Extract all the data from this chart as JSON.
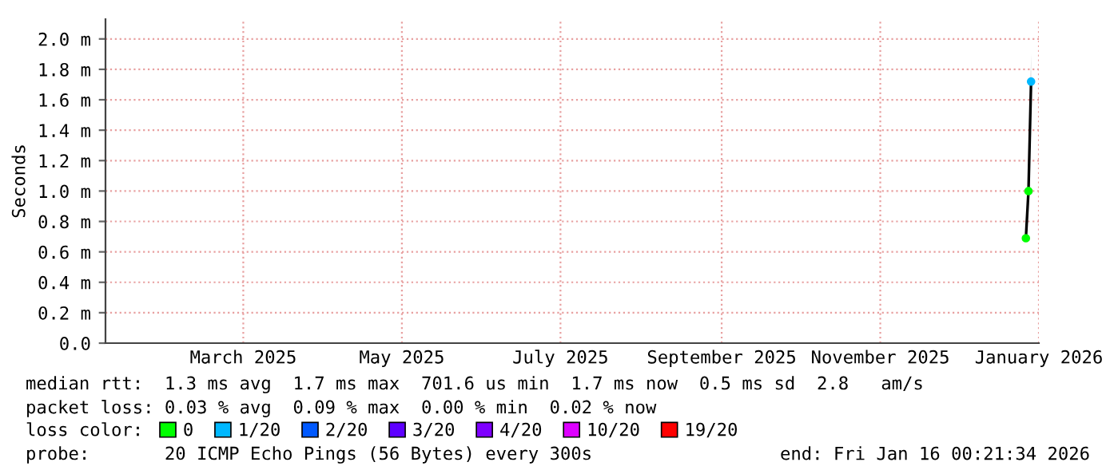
{
  "chart_data": {
    "type": "line",
    "ylabel": "Seconds",
    "x": [
      "2026-01-11",
      "2026-01-12",
      "2026-01-13"
    ],
    "series": [
      {
        "color": "#000000",
        "values": [
          0.69,
          1.0,
          1.72
        ],
        "lower": [
          0.66,
          0.9,
          1.6
        ],
        "upper": [
          0.75,
          1.05,
          1.9
        ]
      },
      {
        "type": "scatter",
        "marker": "circle",
        "name": "0",
        "color": "#00ff00",
        "values": [
          0.69,
          1.0,
          null
        ]
      },
      {
        "type": "scatter",
        "marker": "circle",
        "name": "1/20",
        "color": "#00b8ff",
        "values": [
          null,
          null,
          1.72
        ]
      },
      {
        "type": "scatter",
        "name": "2/20",
        "color": "#0059ff",
        "values": [
          null,
          null,
          null
        ]
      },
      {
        "type": "scatter",
        "name": "3/20",
        "color": "#5e00ff",
        "values": [
          null,
          null,
          null
        ]
      },
      {
        "type": "scatter",
        "name": "4/20",
        "color": "#7e00ff",
        "values": [
          null,
          null,
          null
        ]
      },
      {
        "type": "scatter",
        "name": "10/20",
        "color": "#dd00ff",
        "values": [
          null,
          null,
          null
        ]
      },
      {
        "type": "scatter",
        "name": "19/20",
        "color": "#ff0000",
        "values": [
          null,
          null,
          null
        ]
      }
    ],
    "xlim": [
      "2025-01-22",
      "2026-01-16"
    ],
    "xticks": [
      {
        "value": "2025-03-16",
        "label": "March 2025"
      },
      {
        "value": "2025-05-16",
        "label": "May 2025"
      },
      {
        "value": "2025-07-16",
        "label": "July 2025"
      },
      {
        "value": "2025-09-16",
        "label": "September 2025"
      },
      {
        "value": "2025-11-16",
        "label": "November 2025"
      },
      {
        "value": "2026-01-16",
        "label": "January 2026"
      }
    ],
    "ylim": [
      0,
      2.13
    ],
    "yticks": [
      {
        "value": 0,
        "label": "0.0"
      },
      {
        "value": 0.2,
        "label": "0.2 m"
      },
      {
        "value": 0.4,
        "label": "0.4 m"
      },
      {
        "value": 0.6,
        "label": "0.6 m"
      },
      {
        "value": 0.8,
        "label": "0.8 m"
      },
      {
        "value": 1.0,
        "label": "1.0 m"
      },
      {
        "value": 1.2,
        "label": "1.2 m"
      },
      {
        "value": 1.4,
        "label": "1.4 m"
      },
      {
        "value": 1.6,
        "label": "1.6 m"
      },
      {
        "value": 1.8,
        "label": "1.8 m"
      },
      {
        "value": 2.0,
        "label": "2.0 m"
      }
    ],
    "grid": true,
    "legend": "bottom",
    "legend_title": "loss color:",
    "annotations": [
      "median rtt:  1.3 ms avg  1.7 ms max  701.6 us min  1.7 ms now  0.5 ms sd  2.8   am/s",
      "packet loss: 0.03 % avg  0.09 % max  0.00 % min  0.02 % now",
      "probe:       20 ICMP Echo Pings (56 Bytes) every 300s",
      "end: Fri Jan 16 00:21:34 2026"
    ]
  }
}
